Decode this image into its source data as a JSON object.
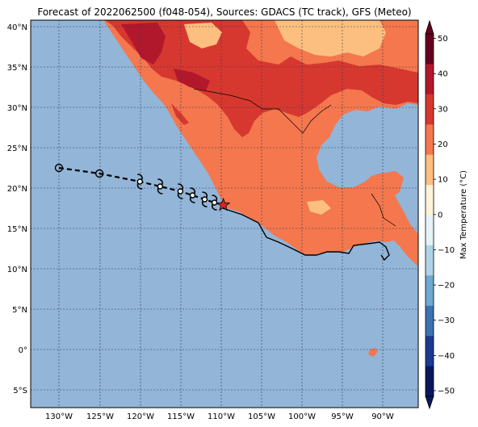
{
  "title": "Forecast of 2022062500 (f048-054), Sources: GDACS (TC track), GFS (Meteo)",
  "colorbar": {
    "label": "Max Temperature (°C)",
    "ticks": [
      "50",
      "40",
      "30",
      "20",
      "10",
      "0",
      "−10",
      "−20",
      "−30",
      "−40",
      "−50"
    ],
    "colors": [
      "#67001f",
      "#b2182b",
      "#d6382f",
      "#f4774e",
      "#fdbf7f",
      "#fff3d9",
      "#e6f2f7",
      "#b0d2e6",
      "#6fa8d0",
      "#3c72b2",
      "#1b3a8f",
      "#09185c"
    ]
  },
  "axes": {
    "lon_labels": [
      "130°W",
      "125°W",
      "120°W",
      "115°W",
      "110°W",
      "105°W",
      "100°W",
      "95°W",
      "90°W"
    ],
    "lat_labels": [
      "40°N",
      "35°N",
      "30°N",
      "25°N",
      "20°N",
      "15°N",
      "10°N",
      "5°N",
      "0°",
      "5°S"
    ]
  },
  "colors": {
    "ocean": "#92b5d8",
    "land_hot": "#d6382f",
    "land_warm": "#f4774e",
    "land_mild": "#fdbf7f",
    "land_very_hot": "#b2182b",
    "track": "#000000",
    "storm_current": "#d62728"
  },
  "track": {
    "past_points": [
      [
        -130,
        22.5
      ],
      [
        -125,
        21.8
      ]
    ],
    "forecast_points": [
      [
        -120,
        20.8
      ],
      [
        -117.5,
        20.2
      ],
      [
        -115,
        19.6
      ],
      [
        -113.5,
        19.1
      ],
      [
        -112,
        18.6
      ],
      [
        -110.8,
        18.2
      ]
    ],
    "current_position": [
      -109.7,
      17.9
    ],
    "icon": "hurricane-symbol-icon",
    "current_icon": "red-star-icon"
  }
}
